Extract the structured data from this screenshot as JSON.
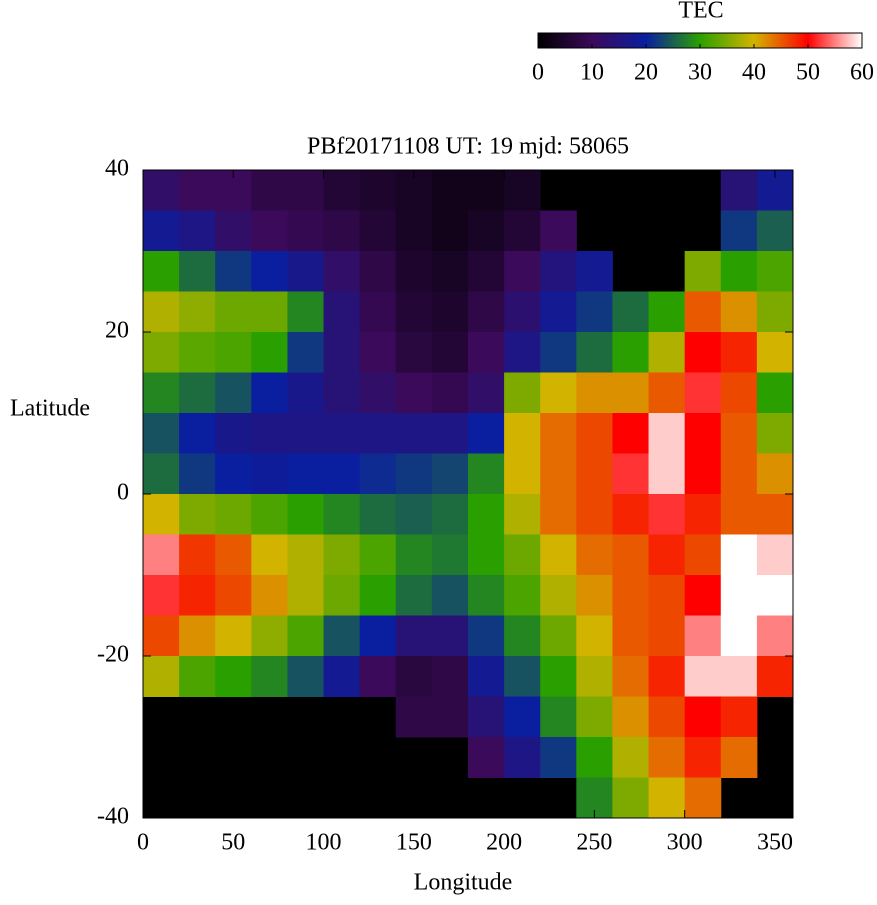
{
  "chart_data": {
    "type": "heatmap",
    "title": "PBf20171108  UT: 19  mjd: 58065",
    "xlabel": "Longitude",
    "ylabel": "Latitude",
    "colorbar_label": "TEC",
    "x": [
      10,
      30,
      50,
      70,
      90,
      110,
      130,
      150,
      170,
      190,
      210,
      230,
      250,
      270,
      290,
      310,
      330,
      350
    ],
    "y": [
      37.5,
      32.5,
      27.5,
      22.5,
      17.5,
      12.5,
      7.5,
      2.5,
      -2.5,
      -7.5,
      -12.5,
      -17.5,
      -22.5,
      -27.5,
      -32.5,
      -37.5
    ],
    "z": [
      [
        12,
        10,
        10,
        8,
        8,
        6,
        5,
        4,
        3,
        3,
        4,
        null,
        null,
        null,
        null,
        null,
        14,
        18
      ],
      [
        18,
        16,
        12,
        10,
        9,
        8,
        6,
        4,
        3,
        4,
        6,
        10,
        null,
        null,
        null,
        null,
        22,
        25
      ],
      [
        30,
        26,
        22,
        20,
        17,
        12,
        8,
        5,
        4,
        6,
        10,
        15,
        18,
        null,
        null,
        35,
        30,
        32
      ],
      [
        38,
        36,
        34,
        34,
        28,
        14,
        9,
        6,
        5,
        8,
        13,
        18,
        22,
        26,
        30,
        45,
        42,
        35
      ],
      [
        35,
        33,
        32,
        30,
        22,
        14,
        10,
        7,
        6,
        10,
        16,
        22,
        26,
        30,
        38,
        50,
        48,
        40
      ],
      [
        28,
        26,
        24,
        20,
        17,
        14,
        12,
        10,
        9,
        12,
        35,
        40,
        42,
        42,
        45,
        52,
        46,
        30
      ],
      [
        24,
        20,
        17,
        16,
        16,
        16,
        16,
        16,
        16,
        20,
        40,
        44,
        46,
        50,
        58,
        50,
        45,
        35
      ],
      [
        26,
        22,
        20,
        19,
        20,
        20,
        21,
        22,
        23,
        28,
        40,
        44,
        46,
        52,
        58,
        50,
        45,
        42
      ],
      [
        40,
        35,
        34,
        32,
        30,
        28,
        26,
        25,
        26,
        30,
        38,
        44,
        46,
        48,
        52,
        48,
        45,
        45
      ],
      [
        55,
        47,
        45,
        40,
        38,
        35,
        32,
        28,
        27,
        30,
        34,
        40,
        44,
        45,
        48,
        46,
        60,
        58
      ],
      [
        52,
        48,
        46,
        42,
        38,
        34,
        30,
        26,
        24,
        28,
        32,
        38,
        42,
        45,
        46,
        50,
        60,
        60
      ],
      [
        46,
        42,
        40,
        36,
        32,
        24,
        20,
        14,
        14,
        22,
        28,
        34,
        40,
        45,
        46,
        55,
        60,
        55
      ],
      [
        38,
        32,
        30,
        28,
        24,
        18,
        10,
        7,
        8,
        18,
        24,
        30,
        38,
        44,
        48,
        58,
        58,
        48
      ],
      [
        null,
        null,
        null,
        null,
        null,
        null,
        null,
        8,
        8,
        14,
        20,
        28,
        35,
        42,
        46,
        50,
        48,
        null
      ],
      [
        null,
        null,
        null,
        null,
        null,
        null,
        null,
        null,
        null,
        10,
        16,
        22,
        30,
        38,
        44,
        48,
        44,
        null
      ],
      [
        null,
        null,
        null,
        null,
        null,
        null,
        null,
        null,
        null,
        null,
        null,
        null,
        28,
        35,
        40,
        44,
        null,
        null
      ]
    ],
    "xlim": [
      0,
      360
    ],
    "ylim": [
      -40,
      40
    ],
    "xticks": [
      0,
      50,
      100,
      150,
      200,
      250,
      300,
      350
    ],
    "yticks": [
      -40,
      -20,
      0,
      20,
      40
    ],
    "zlim": [
      0,
      60
    ],
    "zticks": [
      0,
      10,
      20,
      30,
      40,
      50,
      60
    ],
    "colorscale": [
      "#000000",
      "#3b0a5a",
      "#0a1ea0",
      "#2aa000",
      "#d2b400",
      "#ff0000",
      "#ffffff"
    ],
    "background": "#000000"
  }
}
